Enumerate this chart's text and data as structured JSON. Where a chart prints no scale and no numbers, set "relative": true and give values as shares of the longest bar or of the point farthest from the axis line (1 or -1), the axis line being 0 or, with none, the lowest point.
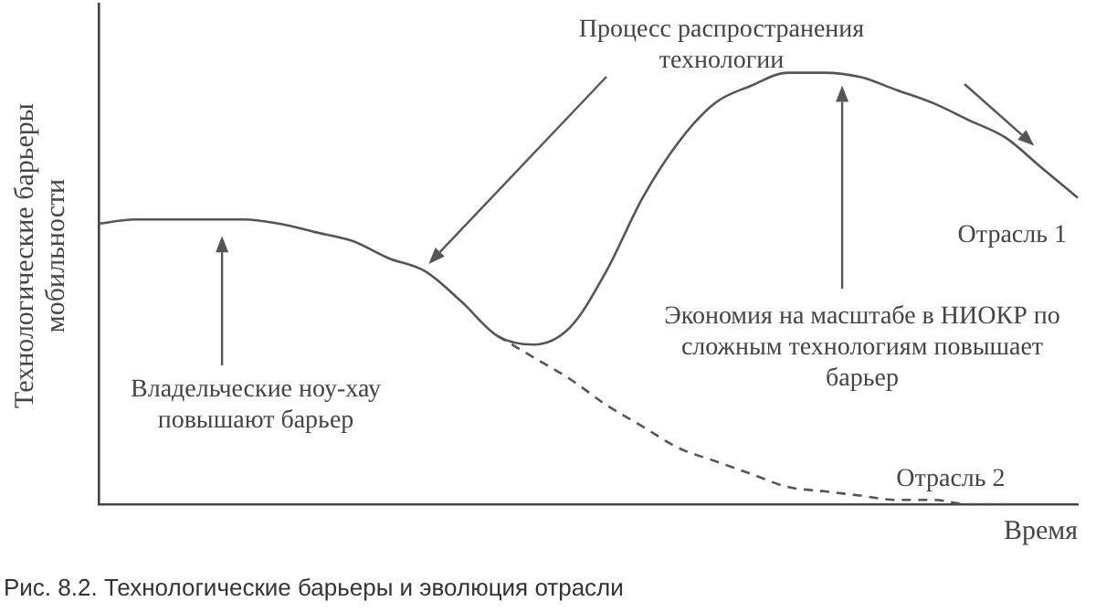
{
  "chart_data": {
    "type": "line",
    "relative": true,
    "legend": false,
    "marker": "none",
    "ylabel": "Технологические барьеры мобильности",
    "xlabel": "Время",
    "categories": [
      null,
      null,
      null,
      null,
      null,
      null,
      null,
      null,
      null,
      null,
      null,
      null,
      null,
      null,
      null,
      null,
      null,
      null,
      null,
      null,
      null,
      null,
      null,
      null,
      null,
      null,
      null,
      null
    ],
    "series": [
      {
        "name": "Отрасль 1",
        "color": "#555555",
        "line_style": "solid",
        "values": [
          0.65,
          0.66,
          0.66,
          0.66,
          0.66,
          0.65,
          0.63,
          0.61,
          0.57,
          0.54,
          0.47,
          0.39,
          0.37,
          0.41,
          0.54,
          0.71,
          0.84,
          0.93,
          0.97,
          1.0,
          1.0,
          0.99,
          0.96,
          0.93,
          0.89,
          0.85,
          0.78,
          0.71
        ]
      },
      {
        "name": "Отрасль 2",
        "color": "#555555",
        "line_style": "dashed",
        "values": [
          null,
          null,
          null,
          null,
          null,
          null,
          null,
          null,
          null,
          null,
          null,
          0.39,
          0.34,
          0.29,
          0.23,
          0.18,
          0.13,
          0.1,
          0.07,
          0.04,
          0.03,
          0.02,
          0.01,
          0.01,
          0.0,
          0.0,
          null,
          null
        ]
      }
    ],
    "annotations": [
      "Процесс распространения технологии",
      "Владельческие ноу-хау повышают барьер",
      "Экономия на масштабе в НИОКР по сложным технологиям повышает барьер",
      "Рис. 8.2. Технологические барьеры и эволюция отрасли"
    ]
  }
}
